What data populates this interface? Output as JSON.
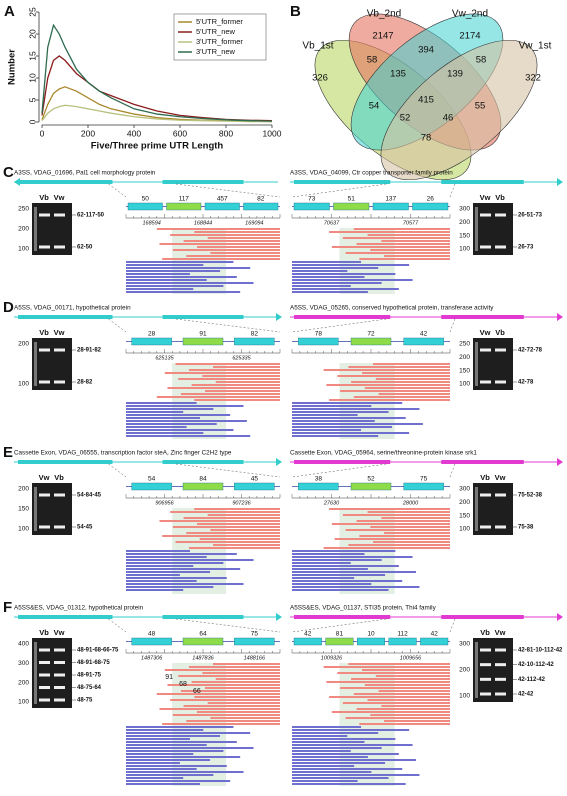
{
  "chart_data": {
    "type": "line",
    "letter": "A",
    "xlabel": "Five/Three prime UTR Length",
    "ylabel": "Number",
    "x": [
      0,
      25,
      50,
      75,
      100,
      150,
      200,
      250,
      300,
      400,
      500,
      600,
      700,
      800,
      900,
      1000
    ],
    "xlim": [
      0,
      1000
    ],
    "xticks": [
      0,
      200,
      400,
      600,
      800,
      1000
    ],
    "ylim": [
      0,
      25
    ],
    "yticks": [
      0,
      5,
      10,
      15,
      20,
      25
    ],
    "legend": "top-right",
    "series": [
      {
        "name": "5'UTR_former",
        "color": "#a8882a",
        "values": [
          0.5,
          4,
          6.5,
          7.5,
          8,
          7,
          5.5,
          4,
          3,
          1.8,
          1,
          0.6,
          0.4,
          0.3,
          0.2,
          0.1
        ]
      },
      {
        "name": "5'UTR_new",
        "color": "#8b1c1c",
        "values": [
          1.5,
          10,
          14,
          15,
          14,
          11,
          9,
          7,
          6,
          4,
          2.5,
          1.5,
          1,
          0.6,
          0.4,
          0.3
        ]
      },
      {
        "name": "3'UTR_former",
        "color": "#b9c07e",
        "values": [
          0.3,
          2,
          3,
          3.5,
          3.8,
          3.5,
          3,
          2.5,
          2,
          1.2,
          0.7,
          0.4,
          0.3,
          0.2,
          0.1,
          0.1
        ]
      },
      {
        "name": "3'UTR_new",
        "color": "#2e6b4f",
        "values": [
          2,
          17,
          22,
          20,
          17,
          12,
          9,
          7,
          5.5,
          3,
          1.8,
          1.2,
          0.8,
          0.5,
          0.3,
          0.2
        ]
      }
    ]
  },
  "venn": {
    "letter": "B",
    "sets": [
      "Vb_1st",
      "Vb_2nd",
      "Vw_2nd",
      "Vw_1st"
    ],
    "regions": [
      "2147",
      "2174",
      "326",
      "322",
      "394",
      "58",
      "58",
      "135",
      "139",
      "415",
      "54",
      "55",
      "52",
      "46",
      "78"
    ]
  },
  "panels": [
    {
      "letter": "C",
      "items": [
        {
          "title": "A3SS, VDAG_01696, Pal1 cell morphology protein",
          "exons": [
            "50",
            "117",
            "457",
            "82"
          ],
          "coords": [
            "168594",
            "168844",
            "169094"
          ],
          "gel": {
            "lanes": [
              "Vb",
              "Vw"
            ],
            "ladder": [
              "250",
              "200",
              "100"
            ],
            "bands": [
              "62-117-50",
              "62-50"
            ]
          }
        },
        {
          "title": "A3SS, VDAG_04099, Ctr copper transporter family protein",
          "exons": [
            "73",
            "51",
            "137",
            "26"
          ],
          "coords": [
            "70637",
            "70577"
          ],
          "gel": {
            "lanes": [
              "Vw",
              "Vb"
            ],
            "ladder": [
              "300",
              "200",
              "150",
              "100"
            ],
            "bands": [
              "26-51-73",
              "26-73"
            ]
          }
        }
      ]
    },
    {
      "letter": "D",
      "items": [
        {
          "title": "A5SS, VDAG_00171, hypothetical protein",
          "exons": [
            "28",
            "91",
            "82"
          ],
          "coords": [
            "625135",
            "625335"
          ],
          "gel": {
            "lanes": [
              "Vb",
              "Vw"
            ],
            "ladder": [
              "200",
              "100"
            ],
            "bands": [
              "28-91-82",
              "28-82"
            ]
          }
        },
        {
          "title": "A5SS, VDAG_05265, conserved hypothetical protein, transferase activity",
          "exons": [
            "78",
            "72",
            "42"
          ],
          "coords": [],
          "gel": {
            "lanes": [
              "Vw",
              "Vb"
            ],
            "ladder": [
              "250",
              "200",
              "150",
              "100"
            ],
            "bands": [
              "42-72-78",
              "42-78"
            ]
          }
        }
      ]
    },
    {
      "letter": "E",
      "items": [
        {
          "title": "Cassette Exon, VDAG_06555, transcription factor steA, Zinc finger C2H2 type",
          "exons": [
            "54",
            "84",
            "45"
          ],
          "coords": [
            "906956",
            "907236"
          ],
          "gel": {
            "lanes": [
              "Vw",
              "Vb"
            ],
            "ladder": [
              "200",
              "150",
              "100"
            ],
            "bands": [
              "54-84-45",
              "54-45"
            ]
          }
        },
        {
          "title": "Cassette Exon, VDAG_05964, serine/threonine-protein kinase srk1",
          "exons": [
            "38",
            "52",
            "75"
          ],
          "coords": [
            "27630",
            "28000"
          ],
          "gel": {
            "lanes": [
              "Vb",
              "Vw"
            ],
            "ladder": [
              "300",
              "200",
              "150",
              "100"
            ],
            "bands": [
              "75-52-38",
              "75-38"
            ]
          }
        }
      ]
    },
    {
      "letter": "F",
      "items": [
        {
          "title": "A5SS&ES, VDAG_01312, hypothetical protein",
          "exons": [
            "48",
            "64",
            "75"
          ],
          "inner": [
            "91",
            "68",
            "66"
          ],
          "coords": [
            "1487306",
            "1487836",
            "1488166"
          ],
          "gel": {
            "lanes": [
              "Vb",
              "Vw"
            ],
            "ladder": [
              "400",
              "300",
              "200",
              "100"
            ],
            "bands": [
              "48-91-68-66-75",
              "48-91-68-75",
              "48-91-75",
              "48-75-64",
              "48-75"
            ]
          }
        },
        {
          "title": "A5SS&ES, VDAG_01137, STI35 protein, Thi4 family",
          "exons": [
            "42",
            "81",
            "10",
            "112",
            "42"
          ],
          "coords": [
            "1009326",
            "1009656"
          ],
          "gel": {
            "lanes": [
              "Vb",
              "Vw"
            ],
            "ladder": [
              "300",
              "200",
              "100"
            ],
            "bands": [
              "42-81-10-112-42",
              "42-10-112-42",
              "42-112-42",
              "42-42"
            ]
          }
        }
      ]
    }
  ]
}
